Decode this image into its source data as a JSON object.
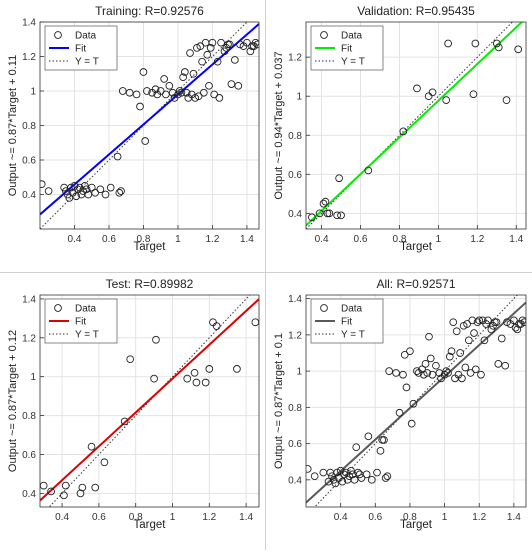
{
  "chart_data": [
    {
      "type": "scatter",
      "title": "Training: R=0.92576",
      "xlabel": "Target",
      "ylabel": "Output ~= 0.87*Target + 0.11",
      "xlim": [
        0.2,
        1.47
      ],
      "ylim": [
        0.2,
        1.4
      ],
      "xticks": [
        "0.4",
        "0.6",
        "0.8",
        "1",
        "1.2",
        "1.4"
      ],
      "yticks": [
        "0.4",
        "0.6",
        "0.8",
        "1",
        "1.2",
        "1.4"
      ],
      "grid": true,
      "legend": {
        "position": "top-left",
        "entries": [
          "Data",
          "Fit",
          "Y = T"
        ]
      },
      "fit": {
        "slope": 0.87,
        "intercept": 0.11,
        "color": "#0000ff"
      },
      "points": [
        [
          0.21,
          0.46
        ],
        [
          0.25,
          0.42
        ],
        [
          0.34,
          0.44
        ],
        [
          0.35,
          0.42
        ],
        [
          0.36,
          0.4
        ],
        [
          0.37,
          0.38
        ],
        [
          0.38,
          0.44
        ],
        [
          0.39,
          0.41
        ],
        [
          0.4,
          0.45
        ],
        [
          0.41,
          0.39
        ],
        [
          0.42,
          0.43
        ],
        [
          0.43,
          0.44
        ],
        [
          0.44,
          0.4
        ],
        [
          0.45,
          0.42
        ],
        [
          0.46,
          0.45
        ],
        [
          0.47,
          0.43
        ],
        [
          0.48,
          0.4
        ],
        [
          0.5,
          0.44
        ],
        [
          0.52,
          0.41
        ],
        [
          0.55,
          0.43
        ],
        [
          0.58,
          0.4
        ],
        [
          0.61,
          0.44
        ],
        [
          0.65,
          0.62
        ],
        [
          0.66,
          0.41
        ],
        [
          0.67,
          0.42
        ],
        [
          0.68,
          1.0
        ],
        [
          0.72,
          0.99
        ],
        [
          0.76,
          0.98
        ],
        [
          0.78,
          0.91
        ],
        [
          0.8,
          1.11
        ],
        [
          0.81,
          0.71
        ],
        [
          0.82,
          1.0
        ],
        [
          0.85,
          0.99
        ],
        [
          0.87,
          1.01
        ],
        [
          0.88,
          0.98
        ],
        [
          0.9,
          1.0
        ],
        [
          0.92,
          1.07
        ],
        [
          0.93,
          0.98
        ],
        [
          0.95,
          1.03
        ],
        [
          0.97,
          0.99
        ],
        [
          0.98,
          0.96
        ],
        [
          1.0,
          0.98
        ],
        [
          1.01,
          1.0
        ],
        [
          1.02,
          0.99
        ],
        [
          1.03,
          1.08
        ],
        [
          1.04,
          1.11
        ],
        [
          1.05,
          0.99
        ],
        [
          1.06,
          0.96
        ],
        [
          1.07,
          1.22
        ],
        [
          1.08,
          0.98
        ],
        [
          1.09,
          1.1
        ],
        [
          1.1,
          0.96
        ],
        [
          1.11,
          1.25
        ],
        [
          1.12,
          0.97
        ],
        [
          1.13,
          1.26
        ],
        [
          1.14,
          1.17
        ],
        [
          1.15,
          0.99
        ],
        [
          1.16,
          1.28
        ],
        [
          1.17,
          1.21
        ],
        [
          1.18,
          1.03
        ],
        [
          1.19,
          1.25
        ],
        [
          1.2,
          1.28
        ],
        [
          1.21,
          0.98
        ],
        [
          1.23,
          1.17
        ],
        [
          1.24,
          0.96
        ],
        [
          1.25,
          1.28
        ],
        [
          1.27,
          1.23
        ],
        [
          1.28,
          1.25
        ],
        [
          1.29,
          1.27
        ],
        [
          1.3,
          1.27
        ],
        [
          1.31,
          1.04
        ],
        [
          1.33,
          1.18
        ],
        [
          1.35,
          1.03
        ],
        [
          1.36,
          1.27
        ],
        [
          1.38,
          1.26
        ],
        [
          1.4,
          1.28
        ],
        [
          1.42,
          1.23
        ],
        [
          1.43,
          1.26
        ],
        [
          1.44,
          1.26
        ],
        [
          1.45,
          1.28
        ],
        [
          1.46,
          1.27
        ]
      ]
    },
    {
      "type": "scatter",
      "title": "Validation: R=0.95435",
      "xlabel": "Target",
      "ylabel": "Output ~= 0.94*Target + 0.037",
      "xlim": [
        0.32,
        1.45
      ],
      "ylim": [
        0.32,
        1.38
      ],
      "xticks": [
        "0.4",
        "0.6",
        "0.8",
        "1",
        "1.2",
        "1.4"
      ],
      "yticks": [
        "0.4",
        "0.6",
        "0.8",
        "1",
        "1.2"
      ],
      "grid": true,
      "legend": {
        "position": "top-left",
        "entries": [
          "Data",
          "Fit",
          "Y = T"
        ]
      },
      "fit": {
        "slope": 0.94,
        "intercept": 0.037,
        "color": "#00ee00"
      },
      "points": [
        [
          0.35,
          0.38
        ],
        [
          0.39,
          0.4
        ],
        [
          0.41,
          0.45
        ],
        [
          0.42,
          0.46
        ],
        [
          0.43,
          0.4
        ],
        [
          0.44,
          0.4
        ],
        [
          0.48,
          0.39
        ],
        [
          0.49,
          0.58
        ],
        [
          0.5,
          0.39
        ],
        [
          0.64,
          0.62
        ],
        [
          0.82,
          0.82
        ],
        [
          0.89,
          1.04
        ],
        [
          0.95,
          1.0
        ],
        [
          0.97,
          1.02
        ],
        [
          1.04,
          0.98
        ],
        [
          1.05,
          1.27
        ],
        [
          1.18,
          1.01
        ],
        [
          1.19,
          1.27
        ],
        [
          1.3,
          1.27
        ],
        [
          1.31,
          1.25
        ],
        [
          1.35,
          0.98
        ],
        [
          1.41,
          1.24
        ]
      ]
    },
    {
      "type": "scatter",
      "title": "Test: R=0.89982",
      "xlabel": "Target",
      "ylabel": "Output ~= 0.87*Target + 0.12",
      "xlim": [
        0.28,
        1.47
      ],
      "ylim": [
        0.33,
        1.42
      ],
      "xticks": [
        "0.4",
        "0.6",
        "0.8",
        "1",
        "1.2",
        "1.4"
      ],
      "yticks": [
        "0.4",
        "0.6",
        "0.8",
        "1",
        "1.2",
        "1.4"
      ],
      "grid": true,
      "legend": {
        "position": "top-left",
        "entries": [
          "Data",
          "Fit",
          "Y = T"
        ]
      },
      "fit": {
        "slope": 0.87,
        "intercept": 0.12,
        "color": "#dd0000"
      },
      "points": [
        [
          0.3,
          0.44
        ],
        [
          0.34,
          0.41
        ],
        [
          0.41,
          0.39
        ],
        [
          0.42,
          0.44
        ],
        [
          0.5,
          0.4
        ],
        [
          0.51,
          0.43
        ],
        [
          0.56,
          0.64
        ],
        [
          0.58,
          0.43
        ],
        [
          0.63,
          0.56
        ],
        [
          0.74,
          0.77
        ],
        [
          0.77,
          1.09
        ],
        [
          0.9,
          0.99
        ],
        [
          0.91,
          1.19
        ],
        [
          1.08,
          0.99
        ],
        [
          1.12,
          1.02
        ],
        [
          1.13,
          0.97
        ],
        [
          1.18,
          0.97
        ],
        [
          1.2,
          1.04
        ],
        [
          1.22,
          1.28
        ],
        [
          1.24,
          1.26
        ],
        [
          1.35,
          1.04
        ],
        [
          1.45,
          1.28
        ]
      ]
    },
    {
      "type": "scatter",
      "title": "All: R=0.92571",
      "xlabel": "Target",
      "ylabel": "Output ~= 0.87*Target + 0.1",
      "xlim": [
        0.2,
        1.47
      ],
      "ylim": [
        0.25,
        1.42
      ],
      "xticks": [
        "0.4",
        "0.6",
        "0.8",
        "1",
        "1.2",
        "1.4"
      ],
      "yticks": [
        "0.4",
        "0.6",
        "0.8",
        "1",
        "1.2",
        "1.4"
      ],
      "grid": true,
      "legend": {
        "position": "top-left",
        "entries": [
          "Data",
          "Fit",
          "Y = T"
        ]
      },
      "fit": {
        "slope": 0.87,
        "intercept": 0.1,
        "color": "#595959"
      },
      "points": [
        [
          0.21,
          0.46
        ],
        [
          0.25,
          0.42
        ],
        [
          0.3,
          0.44
        ],
        [
          0.33,
          0.39
        ],
        [
          0.34,
          0.44
        ],
        [
          0.35,
          0.42
        ],
        [
          0.36,
          0.4
        ],
        [
          0.37,
          0.38
        ],
        [
          0.38,
          0.44
        ],
        [
          0.39,
          0.41
        ],
        [
          0.4,
          0.45
        ],
        [
          0.41,
          0.39
        ],
        [
          0.42,
          0.43
        ],
        [
          0.43,
          0.44
        ],
        [
          0.44,
          0.4
        ],
        [
          0.45,
          0.42
        ],
        [
          0.46,
          0.45
        ],
        [
          0.47,
          0.43
        ],
        [
          0.48,
          0.4
        ],
        [
          0.49,
          0.58
        ],
        [
          0.5,
          0.44
        ],
        [
          0.51,
          0.43
        ],
        [
          0.52,
          0.41
        ],
        [
          0.55,
          0.43
        ],
        [
          0.56,
          0.64
        ],
        [
          0.58,
          0.4
        ],
        [
          0.61,
          0.44
        ],
        [
          0.63,
          0.56
        ],
        [
          0.64,
          0.62
        ],
        [
          0.65,
          0.62
        ],
        [
          0.66,
          0.41
        ],
        [
          0.67,
          0.42
        ],
        [
          0.68,
          1.0
        ],
        [
          0.72,
          0.99
        ],
        [
          0.74,
          0.77
        ],
        [
          0.76,
          0.98
        ],
        [
          0.77,
          1.09
        ],
        [
          0.78,
          0.91
        ],
        [
          0.8,
          1.11
        ],
        [
          0.81,
          0.71
        ],
        [
          0.82,
          0.82
        ],
        [
          0.84,
          1.0
        ],
        [
          0.85,
          0.99
        ],
        [
          0.87,
          1.01
        ],
        [
          0.88,
          0.98
        ],
        [
          0.89,
          1.04
        ],
        [
          0.9,
          0.99
        ],
        [
          0.91,
          1.19
        ],
        [
          0.92,
          1.07
        ],
        [
          0.93,
          0.98
        ],
        [
          0.95,
          1.03
        ],
        [
          0.97,
          0.99
        ],
        [
          0.98,
          0.96
        ],
        [
          1.0,
          0.98
        ],
        [
          1.01,
          1.0
        ],
        [
          1.02,
          0.99
        ],
        [
          1.03,
          1.08
        ],
        [
          1.04,
          1.11
        ],
        [
          1.05,
          1.27
        ],
        [
          1.06,
          0.96
        ],
        [
          1.07,
          1.22
        ],
        [
          1.08,
          0.98
        ],
        [
          1.09,
          1.1
        ],
        [
          1.1,
          0.96
        ],
        [
          1.11,
          1.25
        ],
        [
          1.12,
          1.02
        ],
        [
          1.13,
          1.26
        ],
        [
          1.14,
          1.17
        ],
        [
          1.15,
          0.99
        ],
        [
          1.16,
          1.28
        ],
        [
          1.17,
          1.21
        ],
        [
          1.18,
          1.01
        ],
        [
          1.19,
          1.27
        ],
        [
          1.2,
          1.28
        ],
        [
          1.21,
          0.98
        ],
        [
          1.22,
          1.28
        ],
        [
          1.23,
          1.17
        ],
        [
          1.24,
          1.26
        ],
        [
          1.25,
          1.28
        ],
        [
          1.27,
          1.23
        ],
        [
          1.28,
          1.25
        ],
        [
          1.29,
          1.27
        ],
        [
          1.3,
          1.27
        ],
        [
          1.31,
          1.04
        ],
        [
          1.33,
          1.18
        ],
        [
          1.35,
          1.03
        ],
        [
          1.36,
          1.27
        ],
        [
          1.38,
          1.26
        ],
        [
          1.4,
          1.28
        ],
        [
          1.41,
          1.24
        ],
        [
          1.42,
          1.23
        ],
        [
          1.43,
          1.26
        ],
        [
          1.44,
          1.26
        ],
        [
          1.45,
          1.28
        ],
        [
          1.46,
          1.27
        ]
      ]
    }
  ]
}
